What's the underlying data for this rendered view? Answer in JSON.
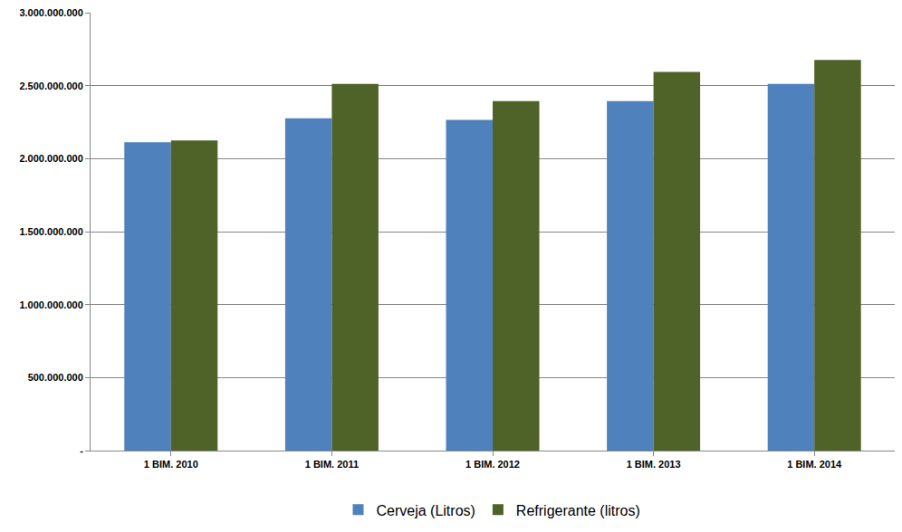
{
  "chart_data": {
    "type": "bar",
    "categories": [
      "1 BIM. 2010",
      "1 BIM. 2011",
      "1 BIM. 2012",
      "1 BIM. 2013",
      "1 BIM. 2014"
    ],
    "series": [
      {
        "name": "Cerveja (Litros)",
        "color": "#4f81bd",
        "values": [
          2112000000,
          2276000000,
          2265000000,
          2394000000,
          2512000000
        ]
      },
      {
        "name": "Refrigerante (litros)",
        "color": "#4f6228",
        "values": [
          2124000000,
          2512000000,
          2394000000,
          2594000000,
          2676000000
        ]
      }
    ],
    "ylim": [
      0,
      3000000000
    ],
    "yticks": [
      {
        "value": 0,
        "label": "-"
      },
      {
        "value": 500000000,
        "label": "500.000.000"
      },
      {
        "value": 1000000000,
        "label": "1.000.000.000"
      },
      {
        "value": 1500000000,
        "label": "1.500.000.000"
      },
      {
        "value": 2000000000,
        "label": "2.000.000.000"
      },
      {
        "value": 2500000000,
        "label": "2.500.000.000"
      },
      {
        "value": 3000000000,
        "label": "3.000.000.000"
      }
    ],
    "grid": true,
    "legend": "bottom"
  }
}
